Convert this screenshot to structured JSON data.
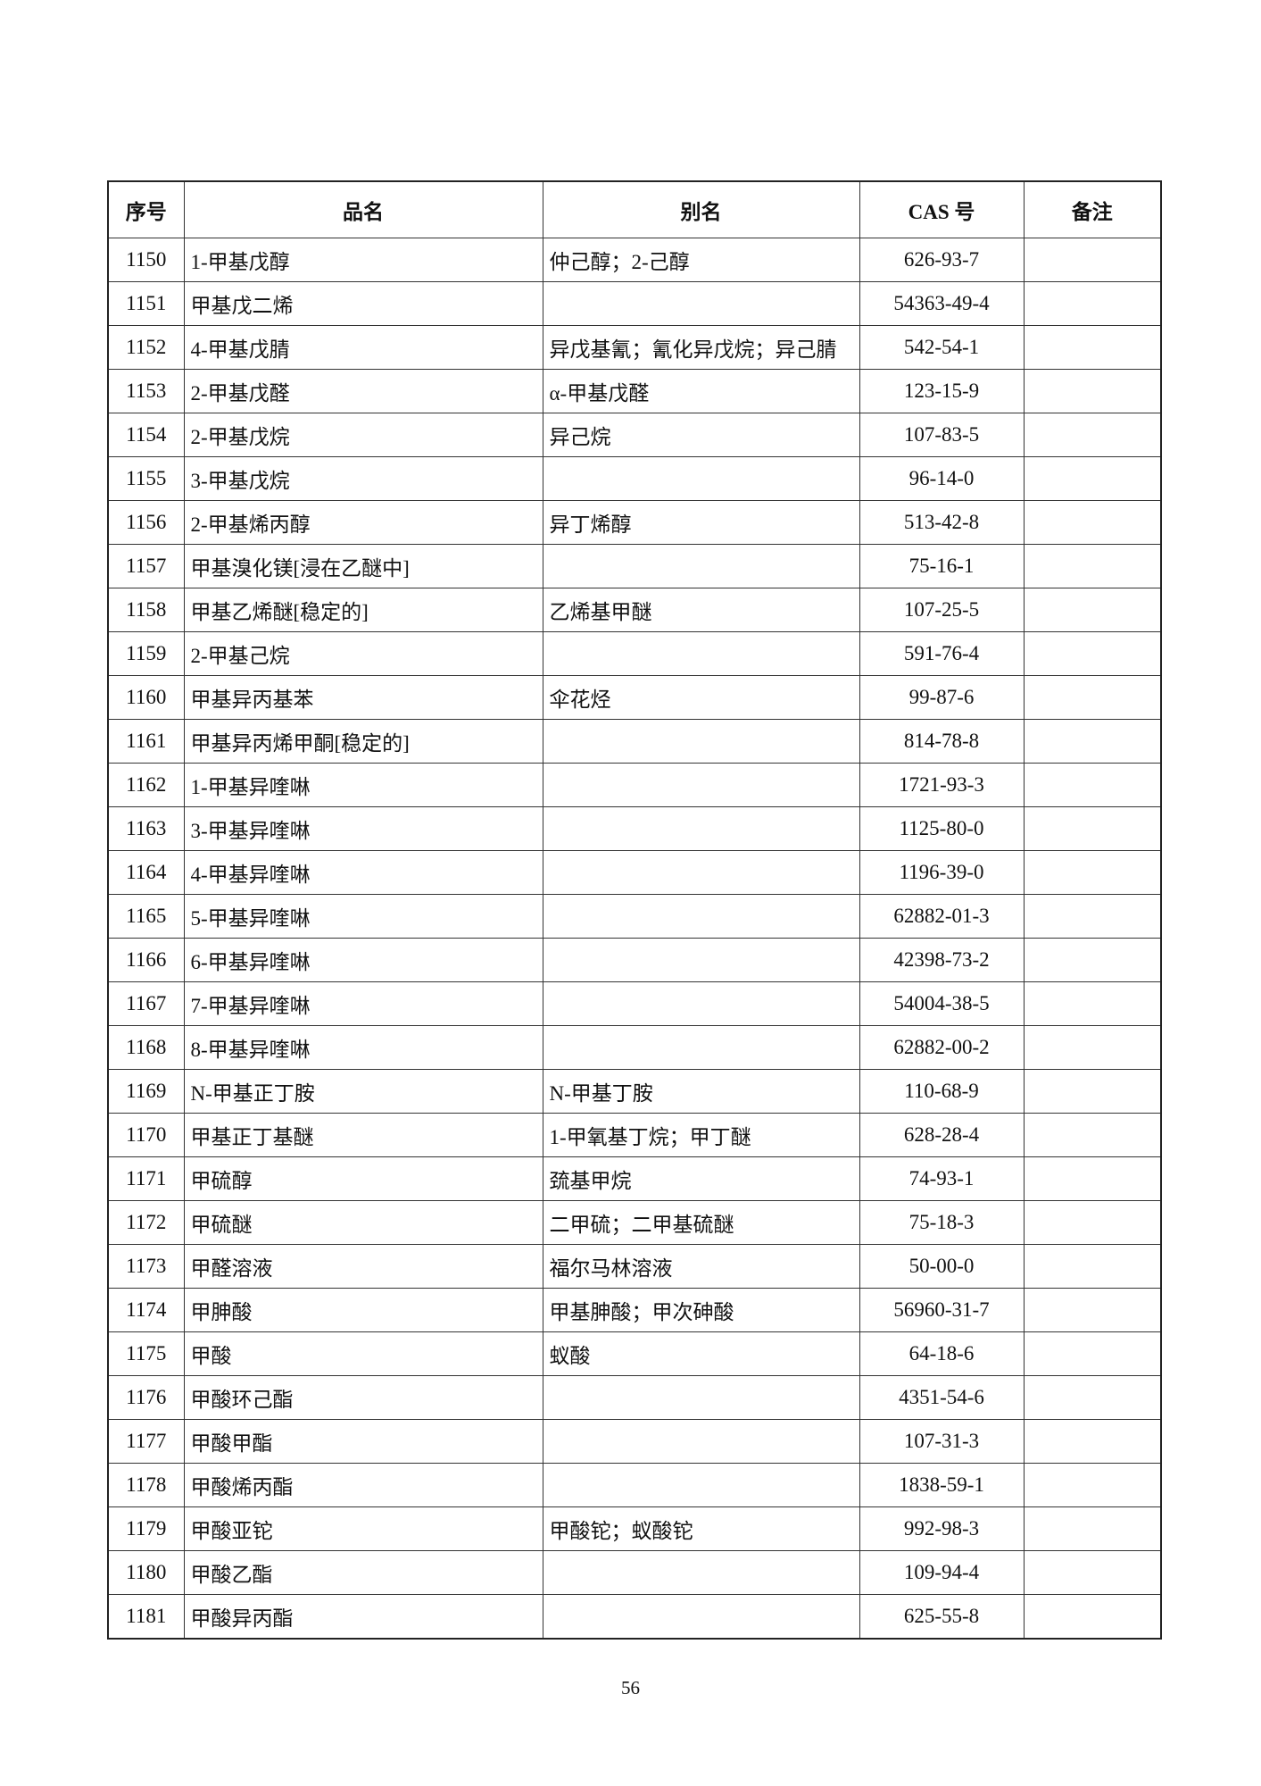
{
  "table": {
    "columns": [
      "序号",
      "品名",
      "别名",
      "CAS 号",
      "备注"
    ],
    "rows": [
      {
        "no": 1150,
        "name": "1-甲基戊醇",
        "alias": "仲己醇；2-己醇",
        "cas": "626-93-7"
      },
      {
        "no": 1151,
        "name": "甲基戊二烯",
        "cas": "54363-49-4"
      },
      {
        "no": 1152,
        "name": "4-甲基戊腈",
        "alias": "异戊基氰；氰化异戊烷；异己腈",
        "cas": "542-54-1"
      },
      {
        "no": 1153,
        "name": "2-甲基戊醛",
        "alias": "α-甲基戊醛",
        "cas": "123-15-9"
      },
      {
        "no": 1154,
        "name": "2-甲基戊烷",
        "alias": "异己烷",
        "cas": "107-83-5"
      },
      {
        "no": 1155,
        "name": "3-甲基戊烷",
        "cas": "96-14-0"
      },
      {
        "no": 1156,
        "name": "2-甲基烯丙醇",
        "alias": "异丁烯醇",
        "cas": "513-42-8"
      },
      {
        "no": 1157,
        "name": "甲基溴化镁[浸在乙醚中]",
        "cas": "75-16-1"
      },
      {
        "no": 1158,
        "name": "甲基乙烯醚[稳定的]",
        "alias": "乙烯基甲醚",
        "cas": "107-25-5"
      },
      {
        "no": 1159,
        "name": "2-甲基己烷",
        "cas": "591-76-4"
      },
      {
        "no": 1160,
        "name": "甲基异丙基苯",
        "alias": "伞花烃",
        "cas": "99-87-6"
      },
      {
        "no": 1161,
        "name": "甲基异丙烯甲酮[稳定的]",
        "cas": "814-78-8"
      },
      {
        "no": 1162,
        "name": "1-甲基异喹啉",
        "cas": "1721-93-3"
      },
      {
        "no": 1163,
        "name": "3-甲基异喹啉",
        "cas": "1125-80-0"
      },
      {
        "no": 1164,
        "name": "4-甲基异喹啉",
        "cas": "1196-39-0"
      },
      {
        "no": 1165,
        "name": "5-甲基异喹啉",
        "cas": "62882-01-3"
      },
      {
        "no": 1166,
        "name": "6-甲基异喹啉",
        "cas": "42398-73-2"
      },
      {
        "no": 1167,
        "name": "7-甲基异喹啉",
        "cas": "54004-38-5"
      },
      {
        "no": 1168,
        "name": "8-甲基异喹啉",
        "cas": "62882-00-2"
      },
      {
        "no": 1169,
        "name": "N-甲基正丁胺",
        "alias": "N-甲基丁胺",
        "cas": "110-68-9"
      },
      {
        "no": 1170,
        "name": "甲基正丁基醚",
        "alias": "1-甲氧基丁烷；甲丁醚",
        "cas": "628-28-4"
      },
      {
        "no": 1171,
        "name": "甲硫醇",
        "alias": "巯基甲烷",
        "cas": "74-93-1"
      },
      {
        "no": 1172,
        "name": "甲硫醚",
        "alias": "二甲硫；二甲基硫醚",
        "cas": "75-18-3"
      },
      {
        "no": 1173,
        "name": "甲醛溶液",
        "alias": "福尔马林溶液",
        "cas": "50-00-0"
      },
      {
        "no": 1174,
        "name": "甲胂酸",
        "alias": "甲基胂酸；甲次砷酸",
        "cas": "56960-31-7"
      },
      {
        "no": 1175,
        "name": "甲酸",
        "alias": "蚁酸",
        "cas": "64-18-6"
      },
      {
        "no": 1176,
        "name": "甲酸环己酯",
        "cas": "4351-54-6"
      },
      {
        "no": 1177,
        "name": "甲酸甲酯",
        "cas": "107-31-3"
      },
      {
        "no": 1178,
        "name": "甲酸烯丙酯",
        "cas": "1838-59-1"
      },
      {
        "no": 1179,
        "name": "甲酸亚铊",
        "alias": "甲酸铊；蚁酸铊",
        "cas": "992-98-3"
      },
      {
        "no": 1180,
        "name": "甲酸乙酯",
        "cas": "109-94-4"
      },
      {
        "no": 1181,
        "name": "甲酸异丙酯",
        "cas": "625-55-8"
      }
    ]
  },
  "footer": {
    "page_number": "56"
  }
}
